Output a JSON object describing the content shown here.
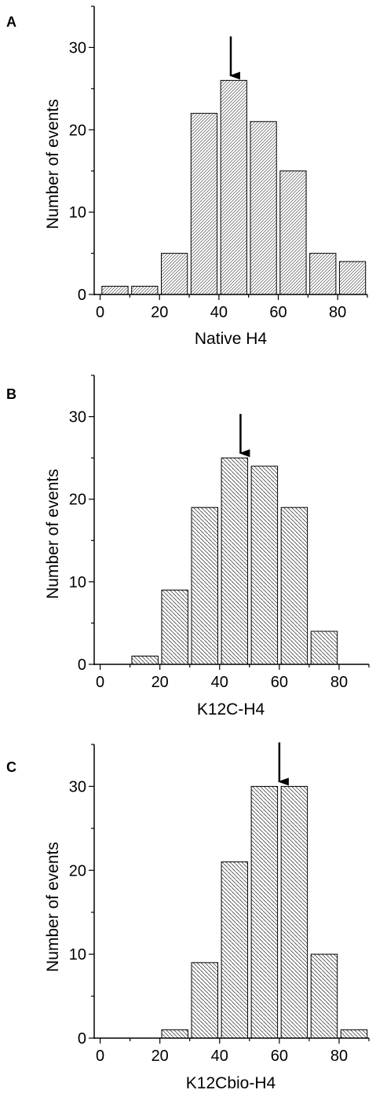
{
  "chart_data": [
    {
      "type": "bar",
      "panel_label": "A",
      "x": [
        5,
        15,
        25,
        35,
        45,
        55,
        65,
        75,
        85
      ],
      "values": [
        1,
        1,
        5,
        22,
        26,
        21,
        15,
        5,
        4
      ],
      "bin_width": 10,
      "xlabel": "Native H4",
      "ylabel": "Number of events",
      "xlim": [
        -2,
        90
      ],
      "ylim": [
        0,
        35
      ],
      "xticks": [
        0,
        20,
        40,
        60,
        80
      ],
      "yticks": [
        0,
        10,
        20,
        30
      ],
      "arrow_x": 44,
      "hatch": "forward-diagonal",
      "grid": false
    },
    {
      "type": "bar",
      "panel_label": "B",
      "x": [
        15,
        25,
        35,
        45,
        55,
        65,
        75
      ],
      "values": [
        1,
        9,
        19,
        25,
        24,
        19,
        4
      ],
      "bin_width": 10,
      "xlabel": "K12C-H4",
      "ylabel": "Number of events",
      "xlim": [
        -2,
        90
      ],
      "ylim": [
        0,
        35
      ],
      "xticks": [
        0,
        20,
        40,
        60,
        80
      ],
      "yticks": [
        0,
        10,
        20,
        30
      ],
      "arrow_x": 47,
      "hatch": "back-diagonal",
      "grid": false
    },
    {
      "type": "bar",
      "panel_label": "C",
      "x": [
        25,
        35,
        45,
        55,
        65,
        75,
        85
      ],
      "values": [
        1,
        9,
        21,
        30,
        30,
        10,
        1
      ],
      "bin_width": 10,
      "xlabel": "K12Cbio-H4",
      "ylabel": "Number of events",
      "xlim": [
        -2,
        90
      ],
      "ylim": [
        0,
        35
      ],
      "xticks": [
        0,
        20,
        40,
        60,
        80
      ],
      "yticks": [
        0,
        10,
        20,
        30
      ],
      "arrow_x": 60,
      "hatch": "back-diagonal",
      "grid": false
    }
  ]
}
